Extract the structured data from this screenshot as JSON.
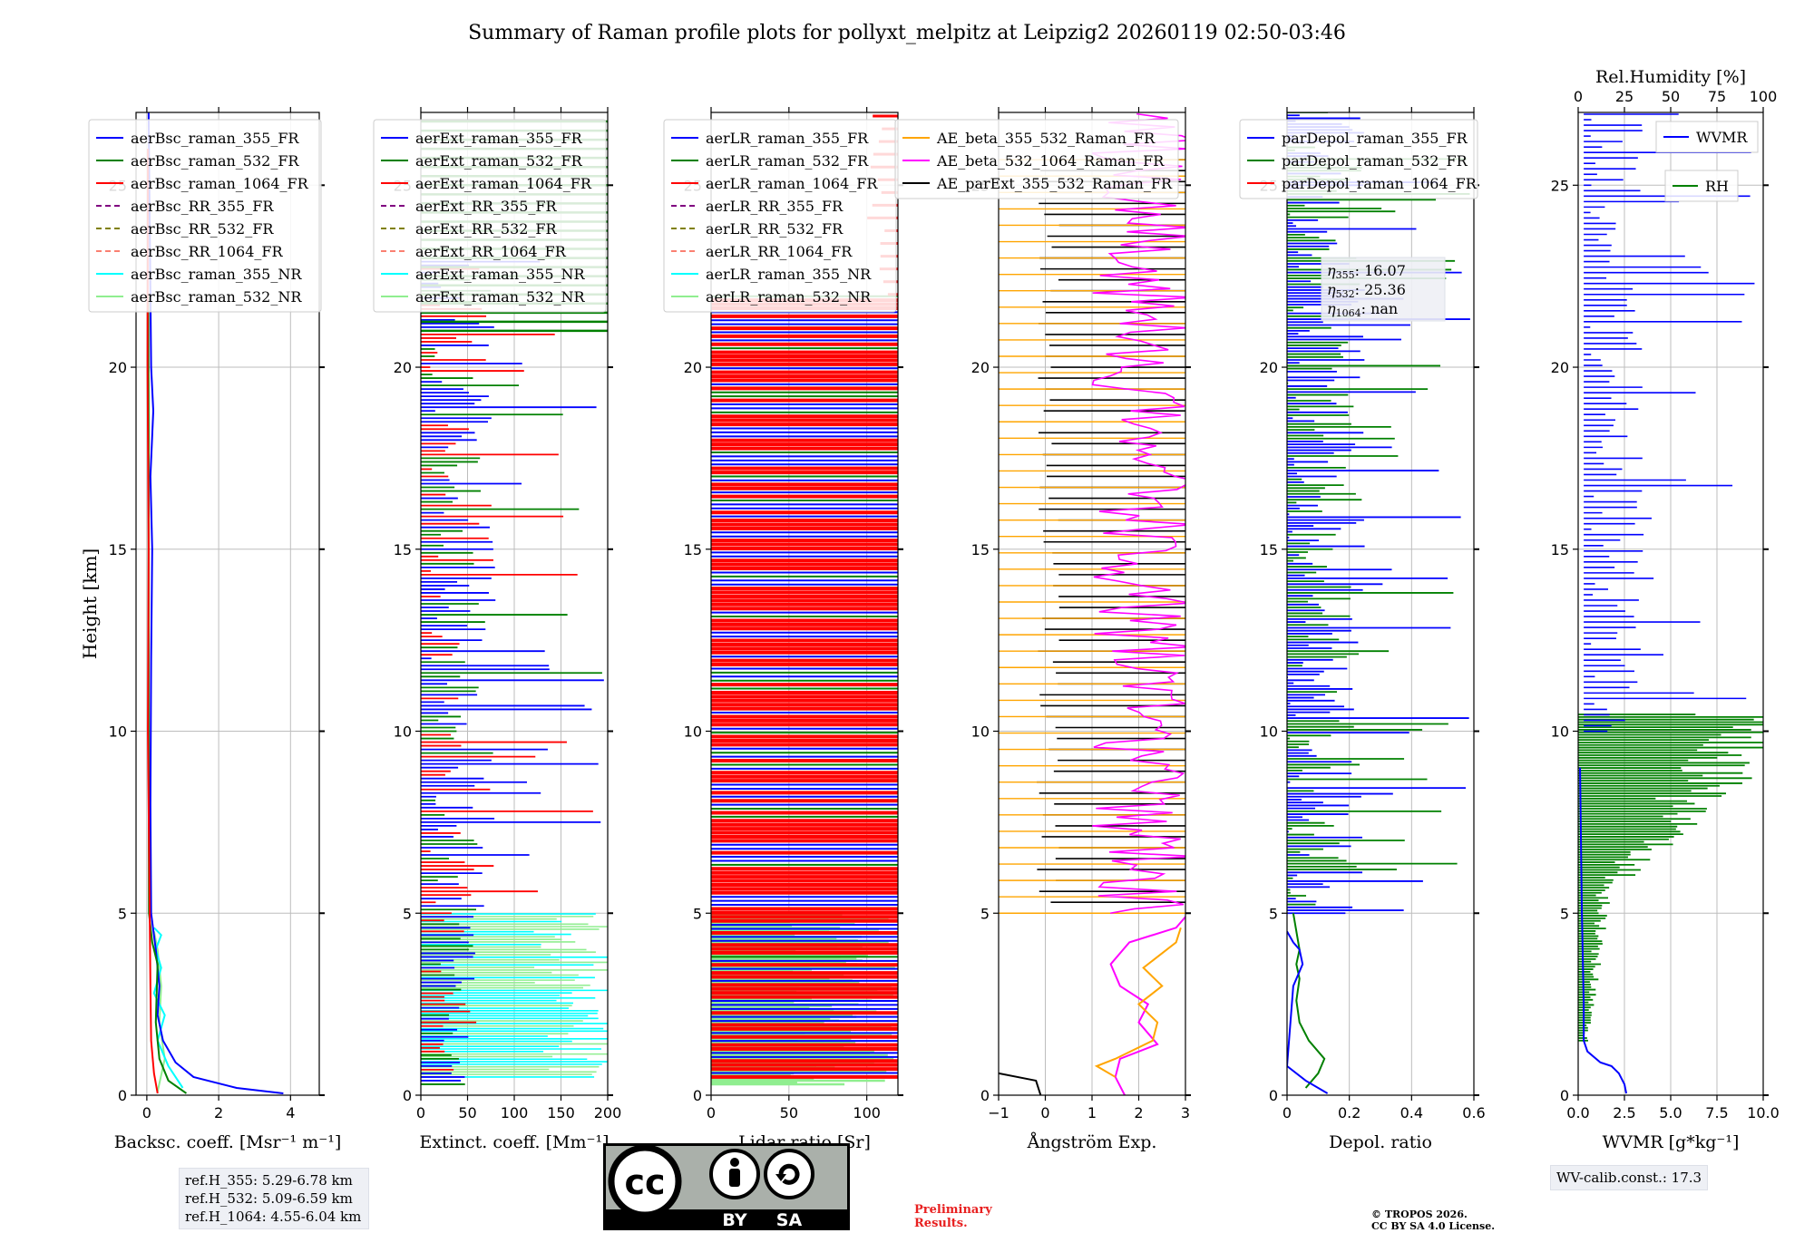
{
  "title": "Summary of Raman profile plots for pollyxt_melpitz at Leipzig2 20260119 02:50-03:46",
  "y_axis": {
    "label": "Height [km]",
    "range": [
      0,
      27
    ],
    "ticks": [
      0,
      5,
      10,
      15,
      20,
      25
    ]
  },
  "colors": {
    "blue": "#0000ff",
    "green": "#008000",
    "red": "#ff0000",
    "purple": "#800080",
    "olive": "#808000",
    "salmon": "#fa8072",
    "cyan": "#00ffff",
    "lightgreen": "#90ee90",
    "orange": "#ffa500",
    "magenta": "#ff00ff",
    "black": "#000000"
  },
  "chart_data": [
    {
      "type": "line",
      "id": "bsc",
      "xlabel": "Backsc. coeff. [Msr⁻¹ m⁻¹]",
      "xlim": [
        -0.3,
        4.8
      ],
      "xticks": [
        0,
        2,
        4
      ],
      "legend": [
        {
          "label": "aerBsc_raman_355_FR",
          "color": "#0000ff",
          "dash": false
        },
        {
          "label": "aerBsc_raman_532_FR",
          "color": "#008000",
          "dash": false
        },
        {
          "label": "aerBsc_raman_1064_FR",
          "color": "#ff0000",
          "dash": false
        },
        {
          "label": "aerBsc_RR_355_FR",
          "color": "#800080",
          "dash": true
        },
        {
          "label": "aerBsc_RR_532_FR",
          "color": "#808000",
          "dash": true
        },
        {
          "label": "aerBsc_RR_1064_FR",
          "color": "#fa8072",
          "dash": true
        },
        {
          "label": "aerBsc_raman_355_NR",
          "color": "#00ffff",
          "dash": false
        },
        {
          "label": "aerBsc_raman_532_NR",
          "color": "#90ee90",
          "dash": false
        }
      ],
      "series": [
        {
          "name": "aerBsc_raman_532_NR",
          "color": "#90ee90",
          "points": [
            [
              0.3,
              0.1
            ],
            [
              0.5,
              1
            ],
            [
              0.35,
              2
            ],
            [
              0.4,
              3
            ],
            [
              0.3,
              4
            ],
            [
              0.2,
              4.5
            ]
          ]
        },
        {
          "name": "aerBsc_raman_355_NR",
          "color": "#00ffff",
          "points": [
            [
              1.0,
              0.2
            ],
            [
              0.6,
              0.8
            ],
            [
              0.3,
              1.5
            ],
            [
              0.5,
              2.2
            ],
            [
              0.2,
              2.8
            ],
            [
              0.4,
              3.5
            ],
            [
              0.25,
              4
            ],
            [
              0.4,
              4.4
            ],
            [
              0.2,
              4.6
            ]
          ]
        },
        {
          "name": "aerBsc_raman_355_FR",
          "color": "#0000ff",
          "points": [
            [
              3.8,
              0.05
            ],
            [
              2.5,
              0.2
            ],
            [
              1.3,
              0.5
            ],
            [
              0.8,
              0.9
            ],
            [
              0.45,
              1.5
            ],
            [
              0.3,
              2.2
            ],
            [
              0.35,
              3.0
            ],
            [
              0.3,
              3.5
            ],
            [
              0.25,
              4
            ],
            [
              0.12,
              5
            ],
            [
              0.1,
              8
            ],
            [
              0.12,
              12
            ],
            [
              0.15,
              15
            ],
            [
              0.1,
              17
            ],
            [
              0.18,
              18.8
            ],
            [
              0.12,
              20
            ],
            [
              0.08,
              24
            ],
            [
              0.05,
              27
            ]
          ]
        },
        {
          "name": "aerBsc_raman_532_FR",
          "color": "#008000",
          "points": [
            [
              1.1,
              0.05
            ],
            [
              0.6,
              0.4
            ],
            [
              0.35,
              1.0
            ],
            [
              0.25,
              2.0
            ],
            [
              0.28,
              3.0
            ],
            [
              0.3,
              3.6
            ],
            [
              0.15,
              4.2
            ],
            [
              0.06,
              5
            ],
            [
              0.05,
              10
            ],
            [
              0.05,
              18
            ],
            [
              0.04,
              22
            ]
          ]
        },
        {
          "name": "aerBsc_raman_1064_FR",
          "color": "#ff0000",
          "points": [
            [
              0.3,
              0.05
            ],
            [
              0.2,
              0.6
            ],
            [
              0.12,
              1.5
            ],
            [
              0.1,
              3
            ],
            [
              0.08,
              5
            ],
            [
              0.03,
              10
            ],
            [
              0.05,
              15
            ],
            [
              0.02,
              20
            ],
            [
              0.03,
              26
            ]
          ]
        }
      ]
    },
    {
      "type": "line",
      "id": "ext",
      "xlabel": "Extinct. coeff. [Mm⁻¹]",
      "xlim": [
        0,
        200
      ],
      "xticks": [
        0,
        50,
        100,
        150,
        200
      ],
      "legend": [
        {
          "label": "aerExt_raman_355_FR",
          "color": "#0000ff",
          "dash": false
        },
        {
          "label": "aerExt_raman_532_FR",
          "color": "#008000",
          "dash": false
        },
        {
          "label": "aerExt_raman_1064_FR",
          "color": "#ff0000",
          "dash": false
        },
        {
          "label": "aerExt_RR_355_FR",
          "color": "#800080",
          "dash": true
        },
        {
          "label": "aerExt_RR_532_FR",
          "color": "#808000",
          "dash": true
        },
        {
          "label": "aerExt_RR_1064_FR",
          "color": "#fa8072",
          "dash": true
        },
        {
          "label": "aerExt_raman_355_NR",
          "color": "#00ffff",
          "dash": false
        },
        {
          "label": "aerExt_raman_532_NR",
          "color": "#90ee90",
          "dash": false
        }
      ]
    },
    {
      "type": "line",
      "id": "lr",
      "xlabel": "Lidar ratio [Sr]",
      "xlim": [
        0,
        120
      ],
      "xticks": [
        0,
        50,
        100
      ],
      "legend": [
        {
          "label": "aerLR_raman_355_FR",
          "color": "#0000ff",
          "dash": false
        },
        {
          "label": "aerLR_raman_532_FR",
          "color": "#008000",
          "dash": false
        },
        {
          "label": "aerLR_raman_1064_FR",
          "color": "#ff0000",
          "dash": false
        },
        {
          "label": "aerLR_RR_355_FR",
          "color": "#800080",
          "dash": true
        },
        {
          "label": "aerLR_RR_532_FR",
          "color": "#808000",
          "dash": true
        },
        {
          "label": "aerLR_RR_1064_FR",
          "color": "#fa8072",
          "dash": true
        },
        {
          "label": "aerLR_raman_355_NR",
          "color": "#00ffff",
          "dash": false
        },
        {
          "label": "aerLR_raman_532_NR",
          "color": "#90ee90",
          "dash": false
        }
      ]
    },
    {
      "type": "line",
      "id": "ae",
      "xlabel": "Ångström Exp.",
      "xlim": [
        -1,
        3
      ],
      "xticks": [
        -1,
        0,
        1,
        2,
        3
      ],
      "legend": [
        {
          "label": "AE_beta_355_532_Raman_FR",
          "color": "#ffa500",
          "dash": false
        },
        {
          "label": "AE_beta_532_1064_Raman_FR",
          "color": "#ff00ff",
          "dash": false
        },
        {
          "label": "AE_parExt_355_532_Raman_FR",
          "color": "#000000",
          "dash": false
        }
      ],
      "series": [
        {
          "name": "AE_beta_532_1064_Raman_FR",
          "color": "#ff00ff",
          "points": [
            [
              1.7,
              0
            ],
            [
              1.5,
              0.5
            ],
            [
              1.6,
              1
            ],
            [
              2.4,
              1.4
            ],
            [
              2.0,
              2.0
            ],
            [
              2.2,
              2.5
            ],
            [
              1.6,
              3.0
            ],
            [
              1.4,
              3.6
            ],
            [
              1.8,
              4.2
            ],
            [
              2.8,
              4.6
            ],
            [
              3.0,
              4.9
            ]
          ]
        },
        {
          "name": "AE_beta_355_532_Raman_FR",
          "color": "#ffa500",
          "points": [
            [
              1.5,
              0.5
            ],
            [
              1.1,
              0.8
            ],
            [
              1.5,
              1.0
            ],
            [
              2.3,
              1.5
            ],
            [
              2.4,
              2.0
            ],
            [
              2.0,
              2.5
            ],
            [
              2.5,
              3.0
            ],
            [
              2.1,
              3.5
            ],
            [
              2.8,
              4.2
            ],
            [
              2.9,
              4.6
            ]
          ]
        },
        {
          "name": "AE_parExt_355_532_Raman_FR",
          "color": "#000000",
          "points": [
            [
              -1,
              0.6
            ],
            [
              -0.2,
              0.4
            ],
            [
              -0.1,
              0
            ]
          ]
        }
      ]
    },
    {
      "type": "line",
      "id": "dep",
      "xlabel": "Depol. ratio",
      "xlim": [
        0,
        0.6
      ],
      "xticks": [
        0.0,
        0.2,
        0.4,
        0.6
      ],
      "legend": [
        {
          "label": "parDepol_raman_355_FR",
          "color": "#0000ff",
          "dash": false
        },
        {
          "label": "parDepol_raman_532_FR",
          "color": "#008000",
          "dash": false
        },
        {
          "label": "parDepol_raman_1064_FR",
          "color": "#ff0000",
          "dash": false
        }
      ],
      "eta": [
        {
          "sym": "η",
          "sub": "355",
          "value": ": 16.07"
        },
        {
          "sym": "η",
          "sub": "532",
          "value": ": 25.36"
        },
        {
          "sym": "η",
          "sub": "1064",
          "value": ": nan"
        }
      ],
      "series": [
        {
          "name": "parDepol_raman_532_FR",
          "color": "#008000",
          "points": [
            [
              0.06,
              0.2
            ],
            [
              0.1,
              0.6
            ],
            [
              0.12,
              1.0
            ],
            [
              0.07,
              1.5
            ],
            [
              0.04,
              2.0
            ],
            [
              0.03,
              2.6
            ],
            [
              0.04,
              3.2
            ],
            [
              0.03,
              3.6
            ],
            [
              0.04,
              4.0
            ],
            [
              0.02,
              5.0
            ]
          ]
        },
        {
          "name": "parDepol_raman_355_FR",
          "color": "#0000ff",
          "points": [
            [
              0.13,
              0.05
            ],
            [
              0.06,
              0.4
            ],
            [
              0.0,
              0.8
            ],
            [
              0.02,
              3.0
            ],
            [
              0.05,
              3.6
            ],
            [
              0.04,
              4.0
            ],
            [
              0.02,
              4.2
            ],
            [
              0.0,
              4.5
            ]
          ]
        }
      ]
    },
    {
      "type": "line",
      "id": "wv",
      "xlabel": "WVMR [g*kg⁻¹]",
      "xlim": [
        0,
        10
      ],
      "xticks": [
        "0.0",
        "2.5",
        "5.0",
        "7.5",
        "10.0"
      ],
      "top_xlabel": "Rel.Humidity [%]",
      "top_xlim": [
        0,
        100
      ],
      "top_xticks": [
        0,
        25,
        50,
        75,
        100
      ],
      "legend": [
        {
          "label": "WVMR",
          "color": "#0000ff",
          "dash": false
        },
        {
          "label": "RH",
          "color": "#008000",
          "dash": false
        }
      ],
      "series": [
        {
          "name": "WVMR",
          "color": "#0000ff",
          "points": [
            [
              2.6,
              0.05
            ],
            [
              2.5,
              0.3
            ],
            [
              2.2,
              0.6
            ],
            [
              1.8,
              0.8
            ],
            [
              1.2,
              0.9
            ],
            [
              0.5,
              1.2
            ],
            [
              0.3,
              1.5
            ],
            [
              0.3,
              2.5
            ],
            [
              0.2,
              5
            ],
            [
              0.15,
              7
            ],
            [
              0.1,
              9
            ]
          ]
        }
      ]
    }
  ],
  "ref_box": [
    "ref.H_355: 5.29-6.78 km",
    "ref.H_532: 5.09-6.59 km",
    "ref.H_1064: 4.55-6.04 km"
  ],
  "wv_calib": "WV-calib.const.: 17.3",
  "preliminary": [
    "Preliminary",
    "Results."
  ],
  "copyright": [
    "© TROPOS 2026.",
    "CC BY SA 4.0 License."
  ],
  "license_badge": {
    "cc": "cc",
    "by": "BY",
    "sa": "SA"
  }
}
